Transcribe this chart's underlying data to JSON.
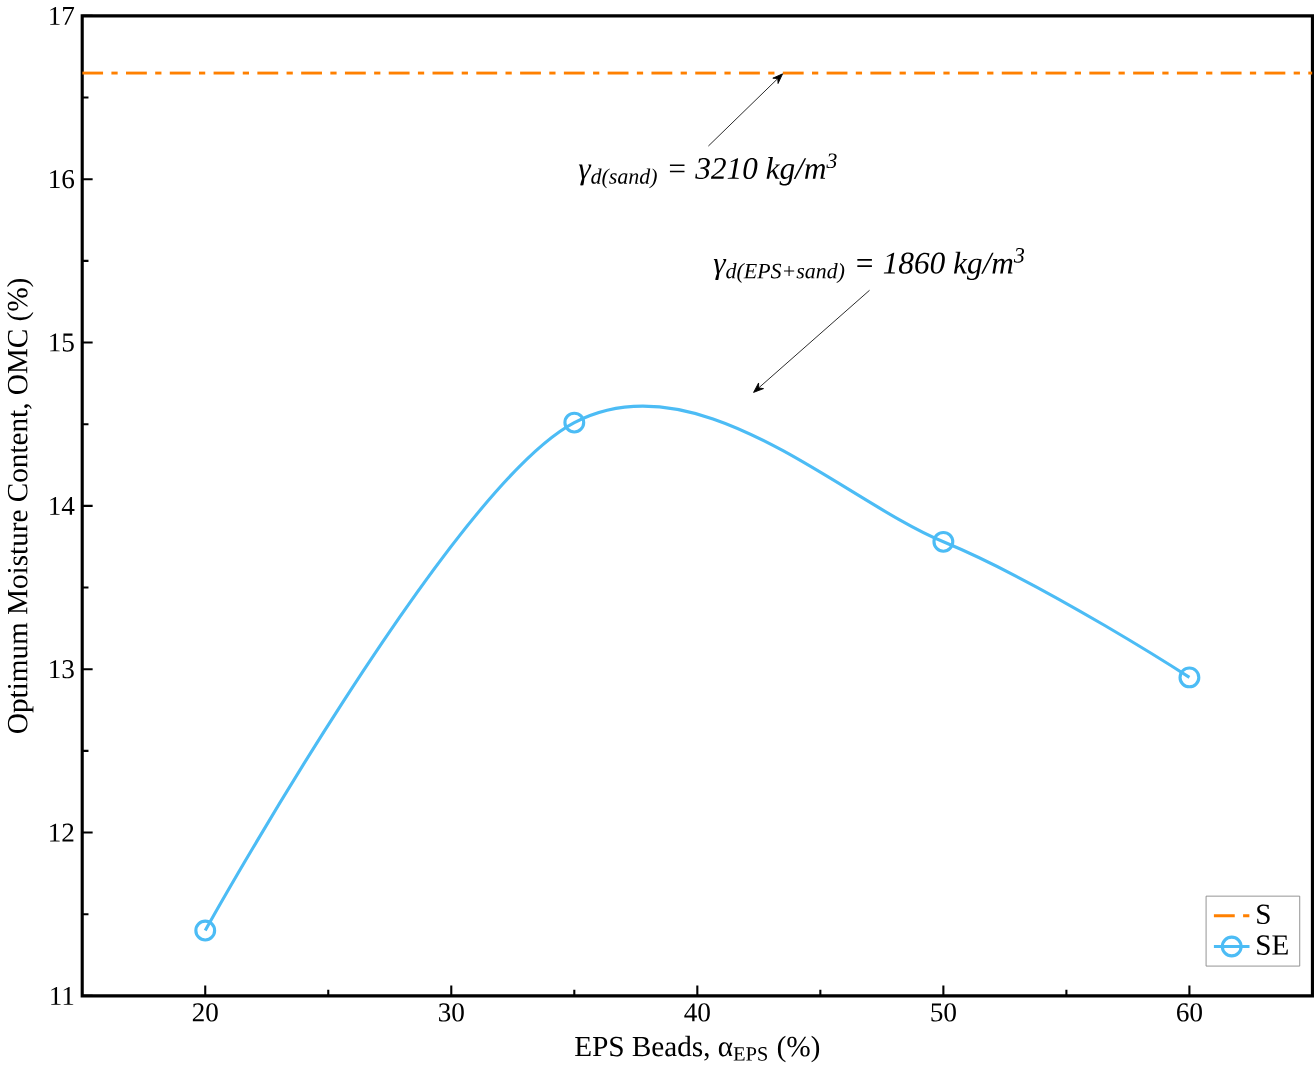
{
  "chart_data": {
    "type": "line",
    "xlabel": "EPS Beads, α$_{EPS}$ (%)",
    "ylabel": "Optimum Moisture Content, OMC (%)",
    "xlim": [
      15,
      65
    ],
    "ylim": [
      11,
      17
    ],
    "xticks": [
      20,
      30,
      40,
      50,
      60
    ],
    "yticks": [
      11,
      12,
      13,
      14,
      15,
      16,
      17
    ],
    "x": [
      20,
      35,
      50,
      60
    ],
    "series": [
      {
        "name": "S",
        "color": "#ff8000",
        "x": [
          15,
          65
        ],
        "values": [
          16.65,
          16.65
        ],
        "line_style": "dashdot",
        "marker": "none"
      },
      {
        "name": "SE",
        "color": "#4cbcf5",
        "values": [
          11.4,
          14.51,
          13.78,
          12.95
        ],
        "line_style": "solid",
        "marker": "circle"
      }
    ],
    "annotations": [
      {
        "text": "γ$_{d(sand)}$ = 3210 kg/m$^{3}$",
        "x": 43.5,
        "y": 16.65
      },
      "γ$_{d(EPS+sand)}$ = 1860 kg/m$^{3}$"
    ],
    "legend": "bottom right",
    "grid": false
  }
}
